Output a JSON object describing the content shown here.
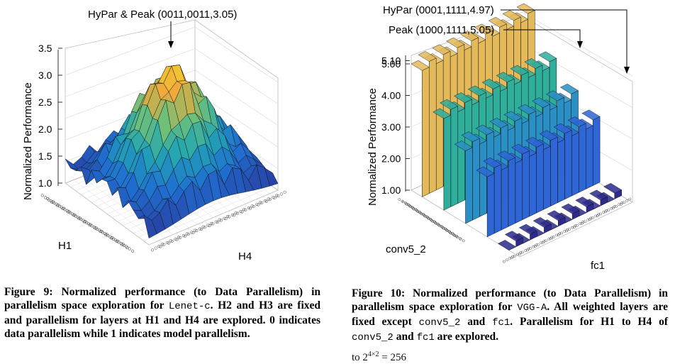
{
  "figure9": {
    "annotation": "HyPar & Peak (0011,0011,3.05)",
    "ylabel": "Normalized Performance",
    "yticks": [
      "3.5",
      "3.0",
      "2.5",
      "2.0",
      "1.5",
      "1.0"
    ],
    "axis_h1": "H1",
    "axis_h4": "H4",
    "caption": {
      "label": "Figure 9: Normalized performance (to Data Parallelism) in parallelism space exploration for",
      "model": "Lenet-c",
      "rest": ". H2 and H3 are fixed and parallelism for layers at H1 and H4 are explored. 0 indicates data parallelism while 1 indicates model parallelism."
    }
  },
  "figure10": {
    "annotation_hypar": "HyPar (0001,1111,4.97)",
    "annotation_peak": "Peak (1000,1111,5.05)",
    "ylabel": "Normalized Performance",
    "yticks": [
      "5.10",
      "5.00",
      "4.00",
      "3.00",
      "2.00",
      "1.00"
    ],
    "axis_left": "conv5_2",
    "axis_right": "fc1",
    "caption": {
      "p1": "Figure 10: Normalized performance (to Data Parallelism) in parallelism space exploration for",
      "model": "VGG-A",
      "p2": ". All weighted layers are fixed except",
      "layer1": "conv5_2",
      "p3": "and",
      "layer2": "fc1",
      "p4": ". Parallelism for H1 to H4 of",
      "layer3": "conv5_2",
      "p5": "and",
      "layer4": "fc1",
      "p6": "are explored."
    }
  },
  "page_cutoff": {
    "base": "to 2",
    "exp": "4×2",
    "rest": "= 256"
  },
  "colors": {
    "low": "#3a2f8f",
    "mid": "#2aa7a0",
    "high": "#f2e52b",
    "orange": "#f0a83a"
  }
}
